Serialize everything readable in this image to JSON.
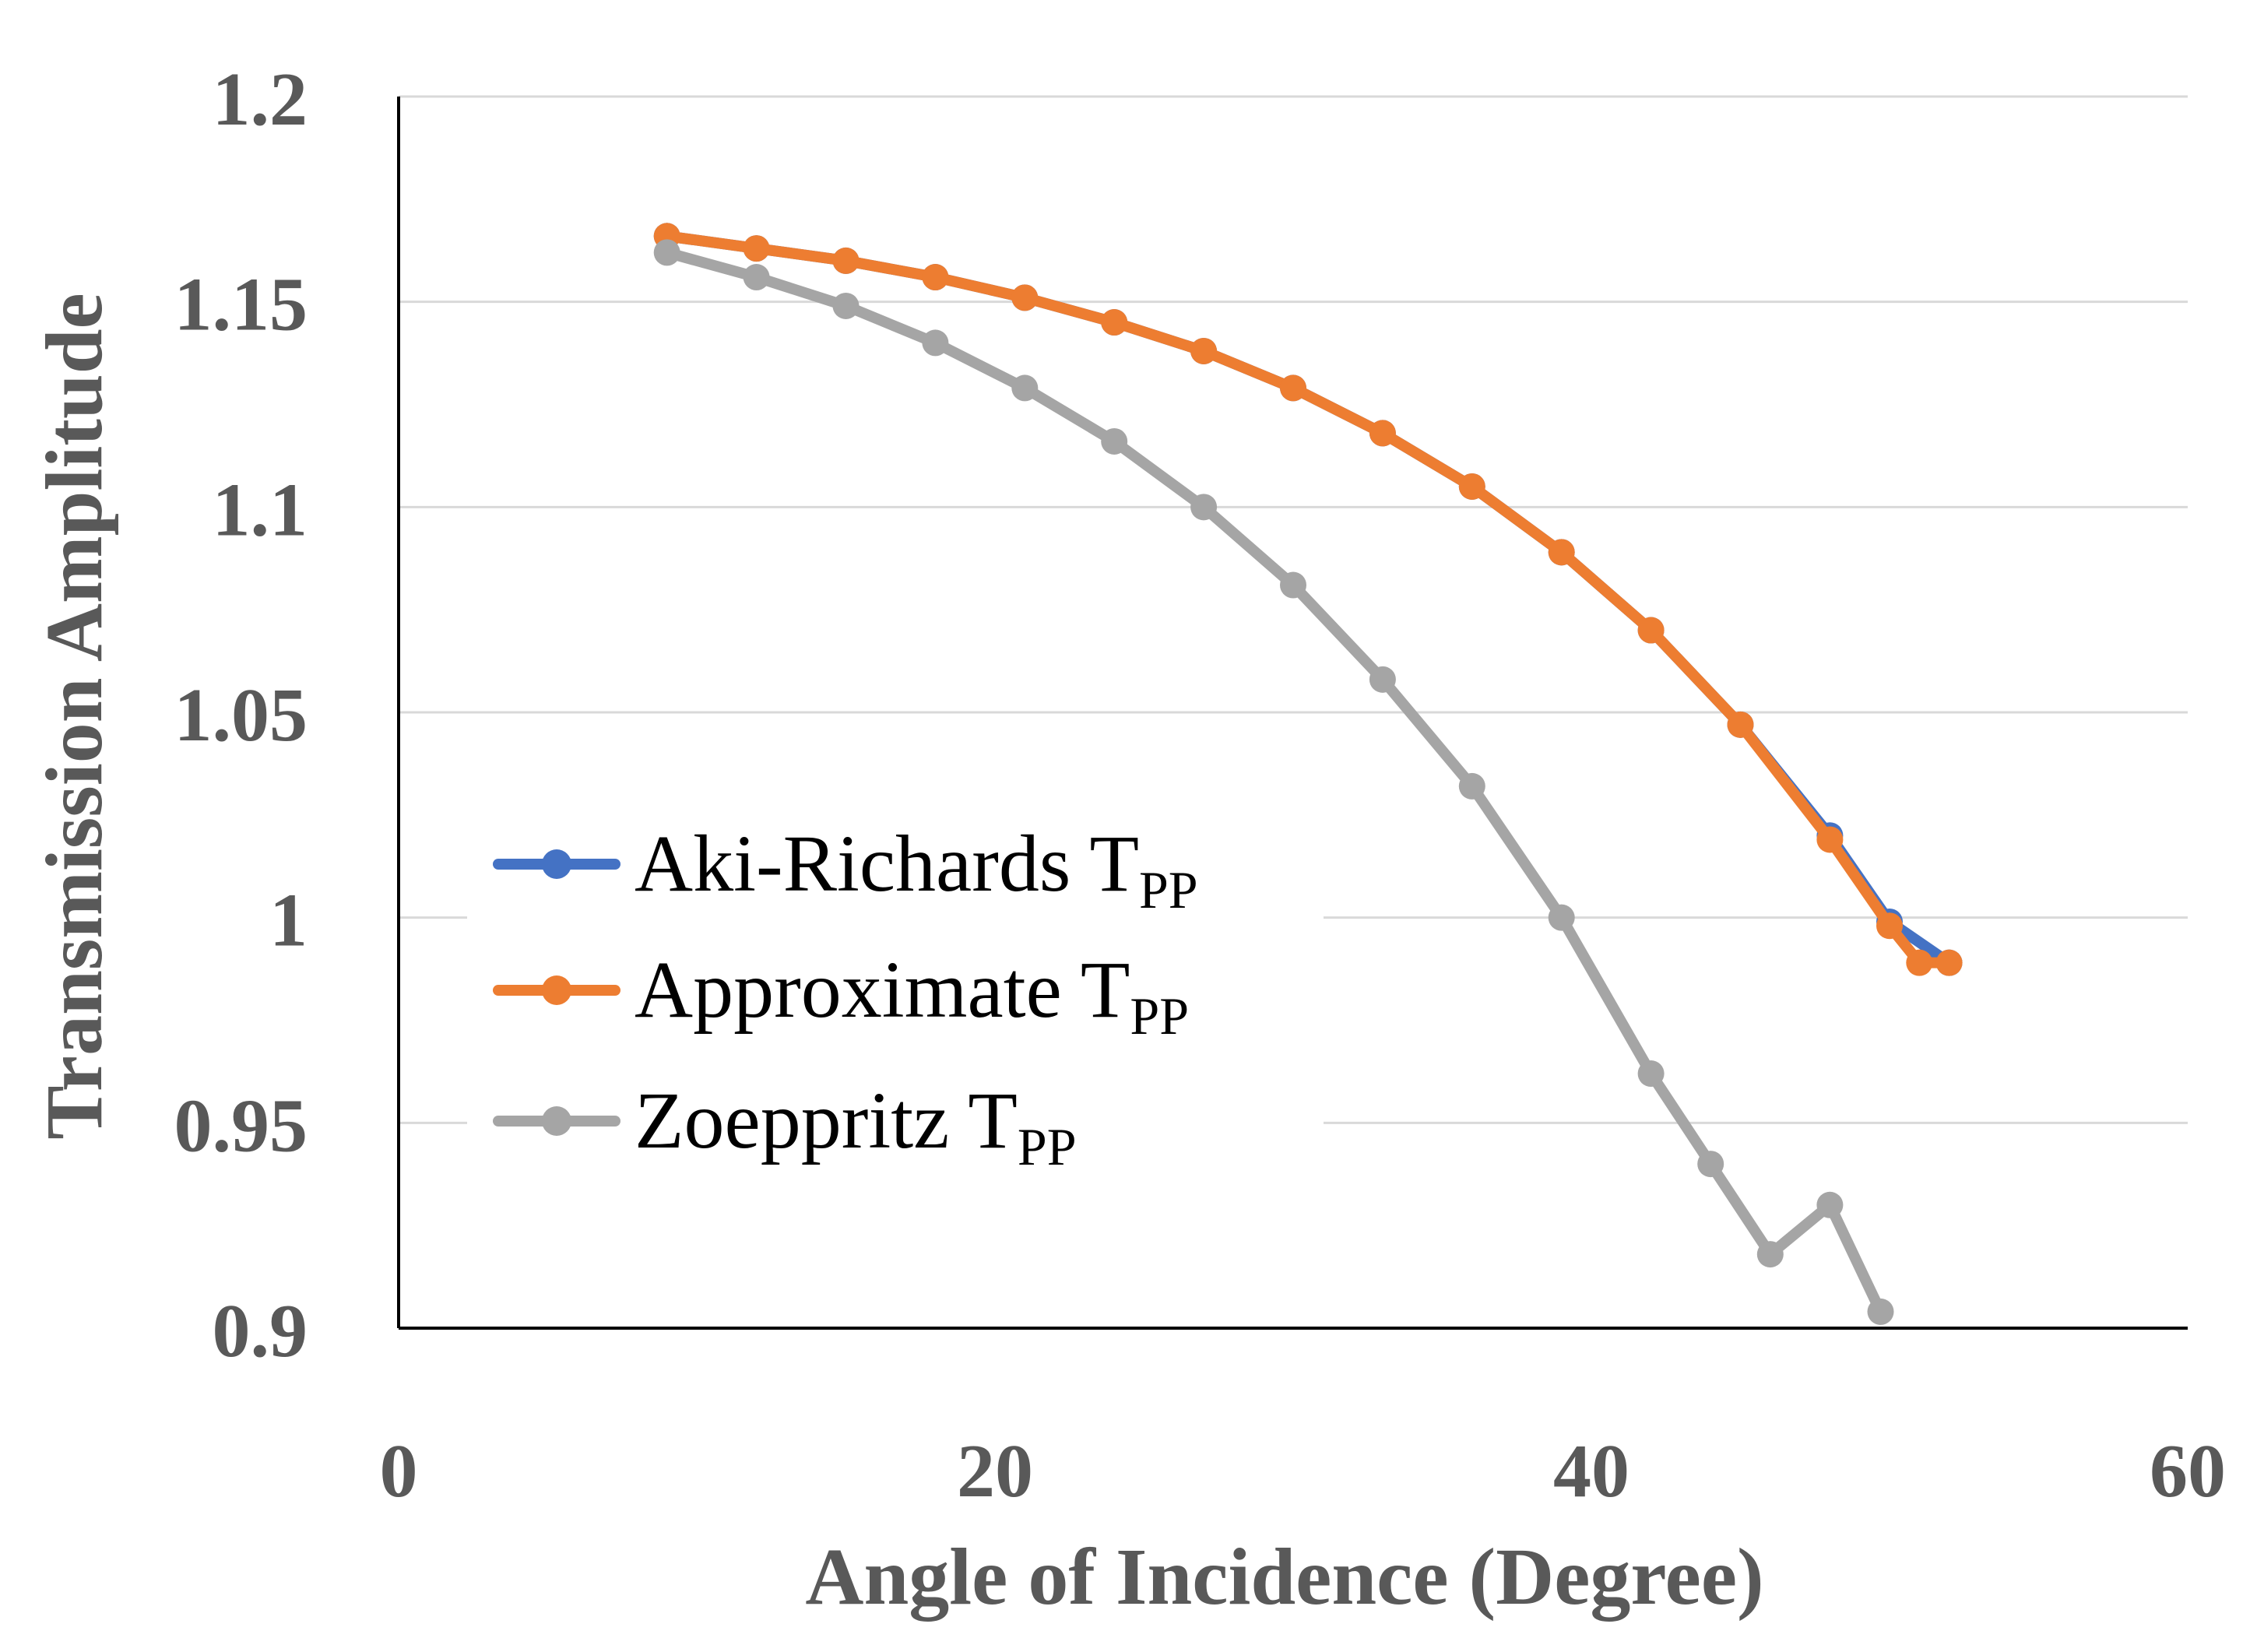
{
  "chart_data": {
    "type": "line",
    "title": "",
    "xlabel": "Angle of Incidence (Degree)",
    "ylabel": "Transmission Amplitude",
    "xlim": [
      0,
      60
    ],
    "ylim": [
      0.9,
      1.2
    ],
    "xticks": [
      "0",
      "20",
      "40",
      "60"
    ],
    "yticks": [
      "0.9",
      "0.95",
      "1",
      "1.05",
      "1.1",
      "1.15",
      "1.2"
    ],
    "grid": "horizontal",
    "legend_position": "lower-left",
    "series": [
      {
        "name": "Aki-Richards",
        "subscript": "PP",
        "label_main": "Aki-Richards T",
        "color": "#4472C4",
        "x": [
          9,
          12,
          15,
          18,
          21,
          24,
          27,
          30,
          33,
          36,
          39,
          42,
          45,
          48,
          50,
          52
        ],
        "y": [
          1.166,
          1.163,
          1.16,
          1.156,
          1.151,
          1.145,
          1.138,
          1.129,
          1.118,
          1.105,
          1.089,
          1.07,
          1.047,
          1.02,
          0.999,
          0.989
        ]
      },
      {
        "name": "Approximate",
        "subscript": "PP",
        "label_main": "Approximate T",
        "color": "#ED7D31",
        "x": [
          9,
          12,
          15,
          18,
          21,
          24,
          27,
          30,
          33,
          36,
          39,
          42,
          45,
          48,
          50,
          51,
          52
        ],
        "y": [
          1.166,
          1.163,
          1.16,
          1.156,
          1.151,
          1.145,
          1.138,
          1.129,
          1.118,
          1.105,
          1.089,
          1.07,
          1.047,
          1.019,
          0.998,
          0.989,
          0.989
        ]
      },
      {
        "name": "Zoeppritz",
        "subscript": "PP",
        "label_main": "Zoeppritz T",
        "color": "#A5A5A5",
        "x": [
          9,
          12,
          15,
          18,
          21,
          24,
          27,
          30,
          33,
          36,
          39,
          42,
          44,
          46,
          48,
          49.7
        ],
        "y": [
          1.162,
          1.156,
          1.149,
          1.14,
          1.129,
          1.116,
          1.1,
          1.081,
          1.058,
          1.032,
          1.0,
          0.962,
          0.94,
          0.918,
          0.93,
          0.904
        ]
      }
    ]
  }
}
